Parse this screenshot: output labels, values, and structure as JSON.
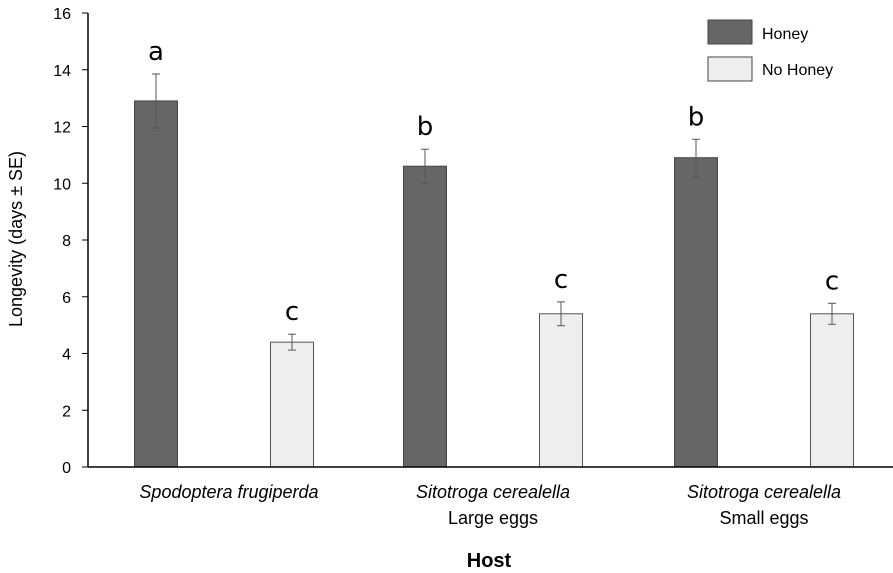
{
  "chart_data": {
    "type": "bar",
    "xlabel": "Host",
    "ylabel": "Longevity  (days ± SE)",
    "ylim": [
      0,
      16
    ],
    "yticks": [
      0,
      2,
      4,
      6,
      8,
      10,
      12,
      14,
      16
    ],
    "grid": false,
    "legend_position": "top-right",
    "categories": [
      {
        "lines": [
          "Spodoptera frugiperda"
        ],
        "italic_lines": [
          true
        ]
      },
      {
        "lines": [
          "Sitotroga cerealella",
          "Large eggs"
        ],
        "italic_lines": [
          true,
          false
        ]
      },
      {
        "lines": [
          "Sitotroga cerealella",
          "Small eggs"
        ],
        "italic_lines": [
          true,
          false
        ]
      }
    ],
    "series": [
      {
        "name": "Honey",
        "color": "#666666",
        "values": [
          12.9,
          10.6,
          10.9
        ],
        "errors": [
          0.95,
          0.6,
          0.65
        ],
        "letters": [
          "a",
          "b",
          "b"
        ]
      },
      {
        "name": "No Honey",
        "color": "#eeeeee",
        "values": [
          4.4,
          5.4,
          5.4
        ],
        "errors": [
          0.28,
          0.42,
          0.37
        ],
        "letters": [
          "c",
          "c",
          "c"
        ]
      }
    ]
  }
}
